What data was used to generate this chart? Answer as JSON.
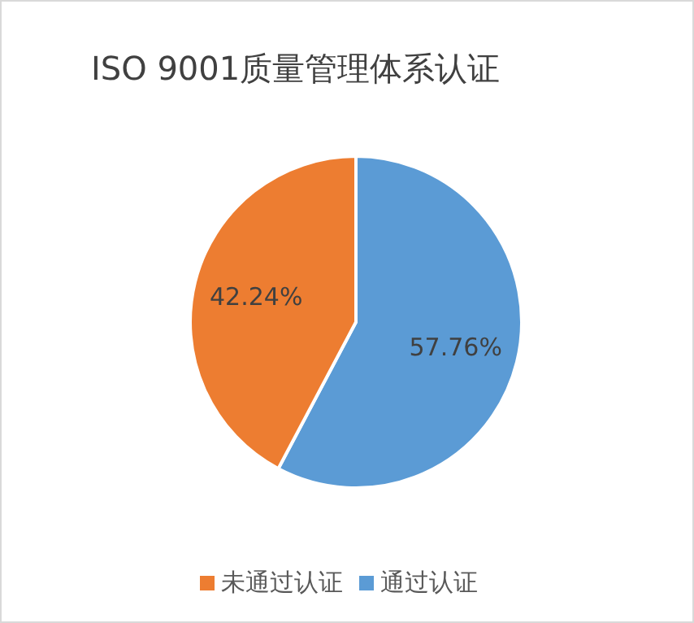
{
  "chart_data": {
    "type": "pie",
    "title": "ISO 9001质量管理体系认证",
    "categories": [
      "通过认证",
      "未通过认证"
    ],
    "values": [
      57.76,
      42.24
    ],
    "colors": [
      "#5b9bd5",
      "#ed7d31"
    ],
    "value_labels": [
      "57.76%",
      "42.24%"
    ],
    "legend": "bottom"
  }
}
